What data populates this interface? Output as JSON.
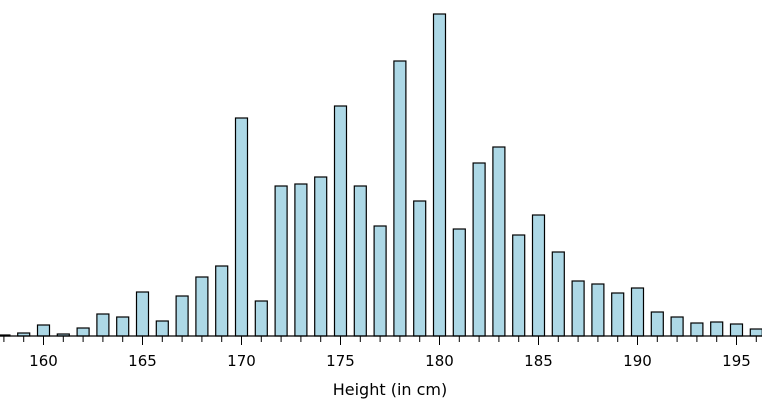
{
  "chart_data": {
    "type": "bar",
    "title": "",
    "xlabel": "Height (in cm)",
    "ylabel": "",
    "x": [
      158,
      159,
      160,
      161,
      162,
      163,
      164,
      165,
      166,
      167,
      168,
      169,
      170,
      171,
      172,
      173,
      174,
      175,
      176,
      177,
      178,
      179,
      180,
      181,
      182,
      183,
      184,
      185,
      186,
      187,
      188,
      189,
      190,
      191,
      192,
      193,
      194,
      195,
      196
    ],
    "values": [
      1,
      3,
      11,
      2,
      8,
      22,
      19,
      44,
      15,
      40,
      59,
      70,
      218,
      35,
      150,
      152,
      159,
      230,
      150,
      110,
      275,
      135,
      322,
      107,
      173,
      189,
      101,
      121,
      84,
      55,
      52,
      43,
      48,
      24,
      19,
      13,
      14,
      12,
      7
    ],
    "xlim": [
      158,
      196
    ],
    "xticks": [
      160,
      165,
      170,
      175,
      180,
      185,
      190,
      195
    ],
    "xtick_labels": [
      "160",
      "165",
      "170",
      "175",
      "180",
      "185",
      "190",
      "195"
    ],
    "ylim": [
      0,
      322
    ],
    "bar_color": "#add8e6",
    "grid": false
  }
}
